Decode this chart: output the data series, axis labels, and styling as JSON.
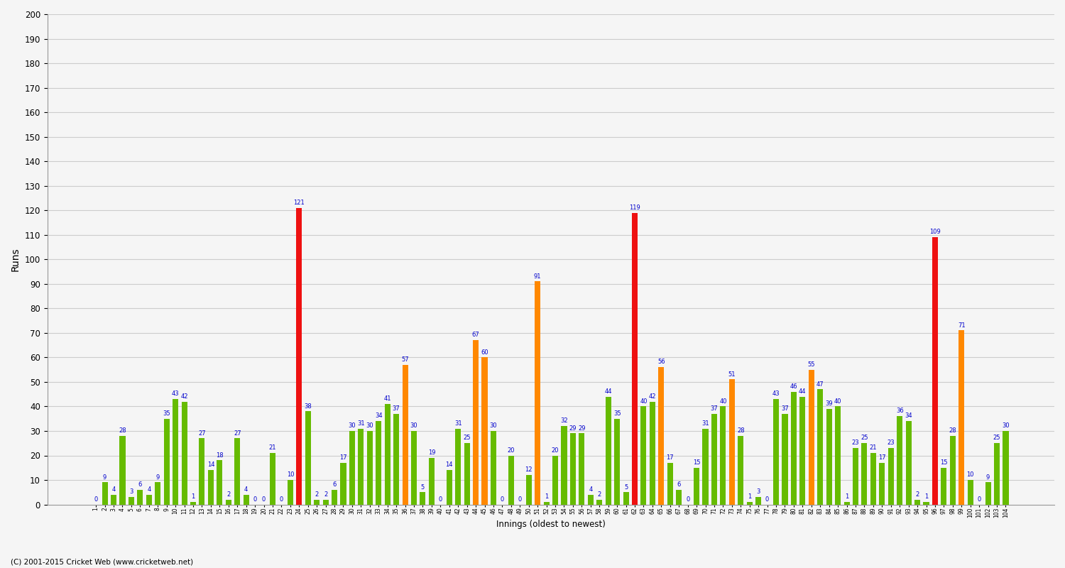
{
  "xlabel": "Innings (oldest to newest)",
  "ylabel": "Runs",
  "ylim": [
    0,
    200
  ],
  "yticks": [
    0,
    10,
    20,
    30,
    40,
    50,
    60,
    70,
    80,
    90,
    100,
    110,
    120,
    130,
    140,
    150,
    160,
    170,
    180,
    190,
    200
  ],
  "background_color": "#f5f5f5",
  "grid_color": "#cccccc",
  "bar_color_normal": "#66bb00",
  "bar_color_fifty": "#ff8800",
  "bar_color_hundred": "#ee1111",
  "label_color": "#0000cc",
  "copyright": "(C) 2001-2015 Cricket Web (www.cricketweb.net)",
  "values": [
    0,
    9,
    4,
    28,
    3,
    6,
    4,
    9,
    35,
    43,
    42,
    1,
    27,
    14,
    18,
    2,
    27,
    4,
    0,
    0,
    21,
    0,
    10,
    121,
    38,
    2,
    2,
    6,
    17,
    30,
    31,
    30,
    34,
    41,
    37,
    57,
    30,
    5,
    19,
    0,
    14,
    31,
    25,
    67,
    60,
    30,
    0,
    20,
    0,
    12,
    91,
    1,
    20,
    32,
    29,
    29,
    4,
    2,
    44,
    35,
    5,
    119,
    40,
    42,
    56,
    17,
    6,
    0,
    15,
    31,
    37,
    40,
    51,
    28,
    1,
    3,
    0,
    43,
    37,
    46,
    44,
    55,
    47,
    39,
    40,
    1,
    23,
    25,
    21,
    17,
    23,
    36,
    34,
    2,
    1,
    109,
    15,
    28,
    71,
    10,
    0,
    9,
    25,
    30
  ],
  "innings_row1": [
    "1",
    "2",
    "3",
    "4",
    "5",
    "6",
    "7",
    "8",
    "9",
    "10",
    "11",
    "12",
    "13",
    "14",
    "15",
    "16",
    "17",
    "18",
    "19",
    "20",
    "21",
    "22",
    "23",
    "24",
    "25",
    "26",
    "27",
    "28",
    "29",
    "30",
    "31",
    "32",
    "33",
    "34",
    "35",
    "36",
    "37",
    "38",
    "39",
    "40",
    "41",
    "42",
    "43",
    "44",
    "45",
    "46",
    "47",
    "48",
    "49",
    "50",
    "51",
    "52",
    "53",
    "54",
    "55",
    "56",
    "57",
    "58",
    "59",
    "60",
    "61",
    "62",
    "63",
    "64",
    "65",
    "66",
    "67",
    "68",
    "69",
    "70",
    "71",
    "72",
    "73",
    "74",
    "75",
    "76",
    "77",
    "78",
    "79",
    "80",
    "81",
    "82",
    "83",
    "84",
    "85",
    "86",
    "87",
    "88",
    "89",
    "90",
    "91",
    "92",
    "93",
    "94",
    "95",
    "96",
    "97",
    "98",
    "99",
    "100",
    "101",
    "102",
    "103",
    "104"
  ]
}
